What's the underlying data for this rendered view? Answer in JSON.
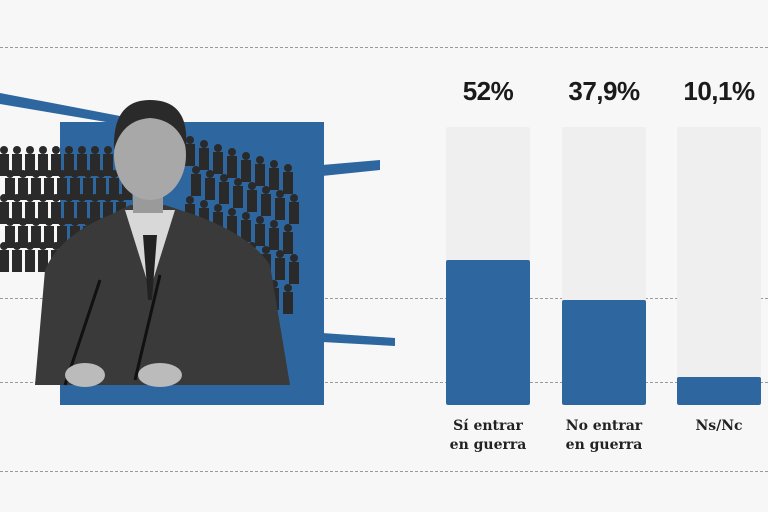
{
  "chart_data": {
    "type": "bar",
    "categories": [
      "Sí entrar\nen guerra",
      "No entrar\nen guerra",
      "Ns/Nc"
    ],
    "values": [
      52,
      37.9,
      10.1
    ],
    "value_labels": [
      "52%",
      "37,9%",
      "10,1%"
    ],
    "ylim": [
      0,
      100
    ],
    "title": "",
    "xlabel": "",
    "ylabel": "",
    "grid": false,
    "bar_color": "#2e679f",
    "track_color": "#efefef"
  }
}
